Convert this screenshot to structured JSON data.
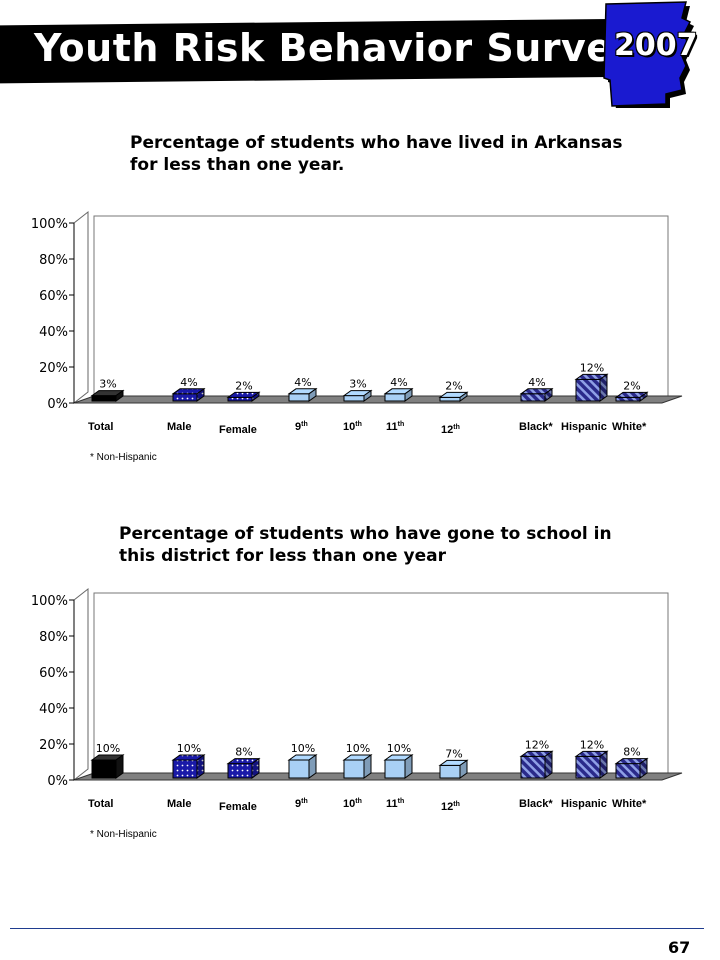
{
  "header": {
    "title": "Youth Risk Behavior Survey",
    "year": "2007"
  },
  "colors": {
    "black": "#000000",
    "blue": "#1a1aa8",
    "light_blue": "#a9d0f5",
    "navy_hatch": "#2a2a8a"
  },
  "chart_data": [
    {
      "type": "bar",
      "title": "Percentage of students who have lived in Arkansas for less than one year.",
      "categories": [
        {
          "name": "Total",
          "sup": ""
        },
        {
          "name": "Male",
          "sup": ""
        },
        {
          "name": "Female",
          "sup": ""
        },
        {
          "name": "9",
          "sup": "th"
        },
        {
          "name": "10",
          "sup": "th"
        },
        {
          "name": "11",
          "sup": "th"
        },
        {
          "name": "12",
          "sup": "th"
        },
        {
          "name": "Black*",
          "sup": ""
        },
        {
          "name": "Hispanic",
          "sup": ""
        },
        {
          "name": "White*",
          "sup": ""
        }
      ],
      "values": [
        3,
        4,
        2,
        4,
        3,
        4,
        2,
        4,
        12,
        2
      ],
      "value_labels": [
        "3%",
        "4%",
        "2%",
        "4%",
        "3%",
        "4%",
        "2%",
        "4%",
        "12%",
        "2%"
      ],
      "styles": [
        "black",
        "dotted",
        "dotted",
        "light",
        "light",
        "light",
        "light",
        "hatch",
        "hatch",
        "hatch"
      ],
      "ylim": [
        0,
        100
      ],
      "yticks": [
        "0%",
        "20%",
        "40%",
        "60%",
        "80%",
        "100%"
      ],
      "footnote": "* Non-Hispanic"
    },
    {
      "type": "bar",
      "title": "Percentage of students who have gone to school in this district for less than one year",
      "categories": [
        {
          "name": "Total",
          "sup": ""
        },
        {
          "name": "Male",
          "sup": ""
        },
        {
          "name": "Female",
          "sup": ""
        },
        {
          "name": "9",
          "sup": "th"
        },
        {
          "name": "10",
          "sup": "th"
        },
        {
          "name": "11",
          "sup": "th"
        },
        {
          "name": "12",
          "sup": "th"
        },
        {
          "name": "Black*",
          "sup": ""
        },
        {
          "name": "Hispanic",
          "sup": ""
        },
        {
          "name": "White*",
          "sup": ""
        }
      ],
      "values": [
        10,
        10,
        8,
        10,
        10,
        10,
        7,
        12,
        12,
        8
      ],
      "value_labels": [
        "10%",
        "10%",
        "8%",
        "10%",
        "10%",
        "10%",
        "7%",
        "12%",
        "12%",
        "8%"
      ],
      "styles": [
        "black",
        "dotted",
        "dotted",
        "light",
        "light",
        "light",
        "light",
        "hatch",
        "hatch",
        "hatch"
      ],
      "ylim": [
        0,
        100
      ],
      "yticks": [
        "0%",
        "20%",
        "40%",
        "60%",
        "80%",
        "100%"
      ],
      "footnote": "* Non-Hispanic"
    }
  ],
  "footer": {
    "page_number": "67"
  }
}
